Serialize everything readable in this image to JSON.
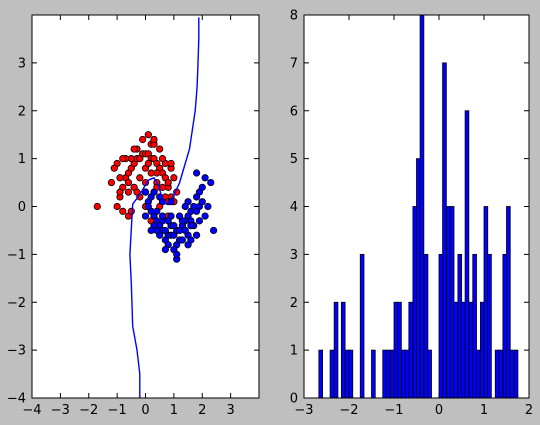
{
  "chart_data": [
    {
      "type": "scatter",
      "title": "",
      "xlabel": "",
      "ylabel": "",
      "xlim": [
        -4,
        4
      ],
      "ylim": [
        -4,
        4
      ],
      "xticks": [
        -4,
        -3,
        -2,
        -1,
        0,
        1,
        2,
        3
      ],
      "yticks": [
        -4,
        -3,
        -2,
        -1,
        0,
        1,
        2,
        3
      ],
      "grid": false,
      "colors": {
        "class0": "#ff0000",
        "class1": "#0000ff",
        "boundary": "#0000ff"
      },
      "series": [
        {
          "class": 0,
          "description_only": false,
          "x": [
            -0.9,
            -0.8,
            -0.7,
            -0.6,
            -0.5,
            -0.4,
            -0.3,
            -0.2,
            -0.1,
            0.0,
            0.1,
            0.2,
            0.3,
            0.4,
            0.5,
            0.6,
            0.7,
            0.8,
            0.9,
            1.0,
            -1.0,
            -0.9,
            -0.6,
            -0.3,
            0.0,
            0.2,
            0.5,
            0.8,
            -1.2,
            -1.0,
            -0.5,
            -0.2,
            0.1,
            0.4,
            0.7,
            1.1,
            -0.7,
            -0.4,
            -0.1,
            0.3,
            0.6,
            0.9,
            -0.8,
            0.0,
            0.4,
            -0.3,
            0.2,
            0.7,
            -1.1,
            -0.6,
            0.1,
            0.5,
            0.9,
            -0.9,
            -0.2,
            0.3,
            0.8,
            -0.4,
            0.0,
            0.6,
            -1.7,
            -0.6,
            0.3,
            1.0,
            0.0,
            0.2,
            -0.8,
            -0.5,
            0.4,
            0.8
          ],
          "y": [
            0.2,
            0.4,
            0.6,
            0.7,
            0.8,
            0.9,
            1.0,
            1.0,
            1.1,
            1.1,
            1.1,
            1.0,
            1.0,
            0.9,
            0.8,
            0.7,
            0.6,
            0.4,
            0.2,
            0.1,
            0.0,
            0.6,
            0.3,
            1.2,
            0.8,
            1.3,
            1.2,
            0.5,
            0.5,
            0.9,
            1.0,
            0.6,
            0.9,
            0.7,
            0.9,
            0.3,
            1.0,
            0.4,
            1.4,
            1.3,
            1.0,
            0.8,
            -0.1,
            0.5,
            0.5,
            0.3,
            0.7,
            0.2,
            0.8,
            -0.2,
            1.5,
            0.0,
            0.9,
            0.3,
            0.2,
            0.3,
            -0.2,
            1.2,
            0.0,
            0.4,
            0.0,
            0.5,
            1.4,
            0.6,
            0.3,
            -0.3,
            1.0,
            -0.1,
            0.4,
            0.1
          ]
        },
        {
          "class": 1,
          "x": [
            0.0,
            0.1,
            0.2,
            0.3,
            0.4,
            0.5,
            0.6,
            0.7,
            0.8,
            0.9,
            1.0,
            1.1,
            1.2,
            1.3,
            1.4,
            1.5,
            1.6,
            1.7,
            1.8,
            1.9,
            2.0,
            0.1,
            0.3,
            0.5,
            0.7,
            0.9,
            1.1,
            1.3,
            1.5,
            1.7,
            1.9,
            0.2,
            0.4,
            0.6,
            0.8,
            1.0,
            1.2,
            1.4,
            1.6,
            1.8,
            2.0,
            2.1,
            0.0,
            0.3,
            0.6,
            0.9,
            1.2,
            1.5,
            1.8,
            2.2,
            0.5,
            1.0,
            1.5,
            2.3,
            0.4,
            0.8,
            1.3,
            1.9,
            0.7,
            1.1,
            1.6,
            2.1,
            0.2,
            1.4,
            1.8,
            2.4,
            1.1,
            0.9,
            1.6,
            0.6
          ],
          "y": [
            0.3,
            0.1,
            -0.1,
            -0.2,
            -0.3,
            -0.4,
            -0.5,
            -0.5,
            -0.6,
            -0.6,
            -0.6,
            -0.5,
            -0.5,
            -0.4,
            -0.3,
            -0.2,
            -0.1,
            0.0,
            0.2,
            0.3,
            0.4,
            0.0,
            -0.4,
            -0.6,
            -0.7,
            -0.4,
            -0.8,
            -0.3,
            -0.6,
            -0.4,
            0.0,
            0.2,
            -0.1,
            -0.3,
            -0.8,
            -0.9,
            -0.7,
            -0.5,
            -0.3,
            -0.1,
            0.1,
            0.6,
            -0.2,
            0.3,
            -0.2,
            -0.2,
            -0.2,
            -0.8,
            -0.6,
            0.0,
            0.2,
            -0.4,
            0.1,
            0.5,
            -0.5,
            -0.3,
            -0.7,
            -0.3,
            -0.9,
            -1.1,
            -0.4,
            -0.2,
            -0.5,
            0.0,
            0.7,
            -0.5,
            -1.0,
            0.1,
            -0.7,
            0.1
          ]
        }
      ],
      "boundary": {
        "x": [
          1.88,
          1.88,
          1.85,
          1.82,
          1.75,
          1.55,
          1.2,
          0.9,
          0.75,
          0.6,
          0.45,
          0.3,
          0.1,
          -0.2,
          -0.45,
          -0.55,
          -0.5,
          -0.45,
          -0.3,
          -0.2,
          -0.2
        ],
        "y": [
          3.95,
          3.5,
          3.0,
          2.5,
          2.0,
          1.2,
          0.5,
          0.1,
          0.05,
          0.15,
          0.45,
          0.6,
          0.55,
          0.25,
          0.05,
          -1.0,
          -1.6,
          -2.5,
          -3.0,
          -3.5,
          -4.0
        ]
      }
    },
    {
      "type": "bar",
      "title": "",
      "xlabel": "",
      "ylabel": "",
      "xlim": [
        -3,
        2
      ],
      "ylim": [
        0,
        8
      ],
      "xticks": [
        -3,
        -2,
        -1,
        0,
        1,
        2
      ],
      "yticks": [
        0,
        1,
        2,
        3,
        4,
        5,
        6,
        7,
        8
      ],
      "grid": false,
      "colors": {
        "bar": "#0000ff"
      },
      "bin_width": 0.0833,
      "bin_starts": [
        -2.67,
        -2.58,
        -2.5,
        -2.42,
        -2.33,
        -2.25,
        -2.17,
        -2.08,
        -2.0,
        -1.92,
        -1.83,
        -1.75,
        -1.67,
        -1.58,
        -1.5,
        -1.42,
        -1.33,
        -1.25,
        -1.17,
        -1.08,
        -1.0,
        -0.92,
        -0.83,
        -0.75,
        -0.67,
        -0.58,
        -0.5,
        -0.42,
        -0.33,
        -0.25,
        -0.17,
        -0.08,
        0.0,
        0.08,
        0.17,
        0.25,
        0.33,
        0.42,
        0.5,
        0.58,
        0.67,
        0.75,
        0.83,
        0.92,
        1.0,
        1.08,
        1.17,
        1.25,
        1.33,
        1.42,
        1.5,
        1.58,
        1.67
      ],
      "values": [
        1,
        0,
        0,
        1,
        2,
        0,
        2,
        1,
        1,
        0,
        0,
        3,
        0,
        0,
        1,
        0,
        0,
        1,
        1,
        1,
        2,
        2,
        1,
        1,
        2,
        4,
        5,
        8,
        3,
        1,
        0,
        0,
        3,
        7,
        4,
        4,
        2,
        3,
        2,
        6,
        2,
        3,
        1,
        2,
        4,
        3,
        0,
        1,
        1,
        3,
        4,
        1,
        1
      ]
    }
  ]
}
